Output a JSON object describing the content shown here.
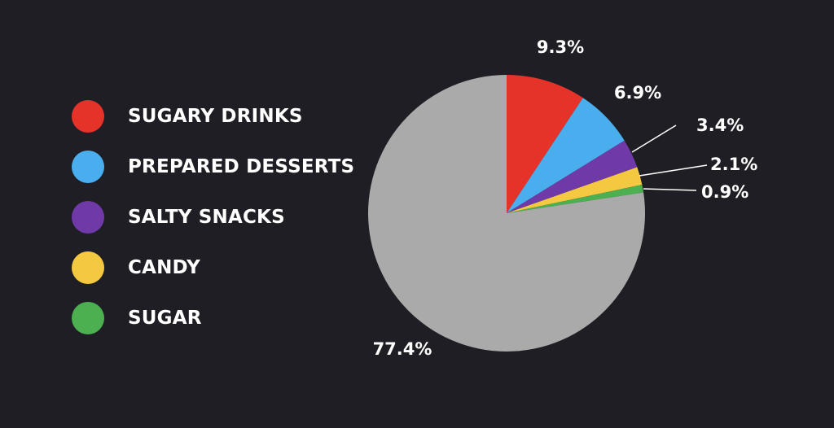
{
  "chart_data": {
    "type": "pie",
    "title": "",
    "slices": [
      {
        "label": "SUGARY DRINKS",
        "value": 9.3,
        "value_label": "9.3%",
        "color": "#e5332a"
      },
      {
        "label": "PREPARED DESSERTS",
        "value": 6.9,
        "value_label": "6.9%",
        "color": "#4aaeee"
      },
      {
        "label": "SALTY SNACKS",
        "value": 3.4,
        "value_label": "3.4%",
        "color": "#6f3aa8"
      },
      {
        "label": "CANDY",
        "value": 2.1,
        "value_label": "2.1%",
        "color": "#f5c842"
      },
      {
        "label": "SUGAR",
        "value": 0.9,
        "value_label": "0.9%",
        "color": "#4caf50"
      },
      {
        "label": "",
        "value": 77.4,
        "value_label": "77.4%",
        "color": "#aaaaaa"
      }
    ],
    "legend": {
      "placement": "left",
      "items": [
        "SUGARY DRINKS",
        "PREPARED DESSERTS",
        "SALTY SNACKS",
        "CANDY",
        "SUGAR"
      ]
    },
    "background": "#1e1e24"
  }
}
